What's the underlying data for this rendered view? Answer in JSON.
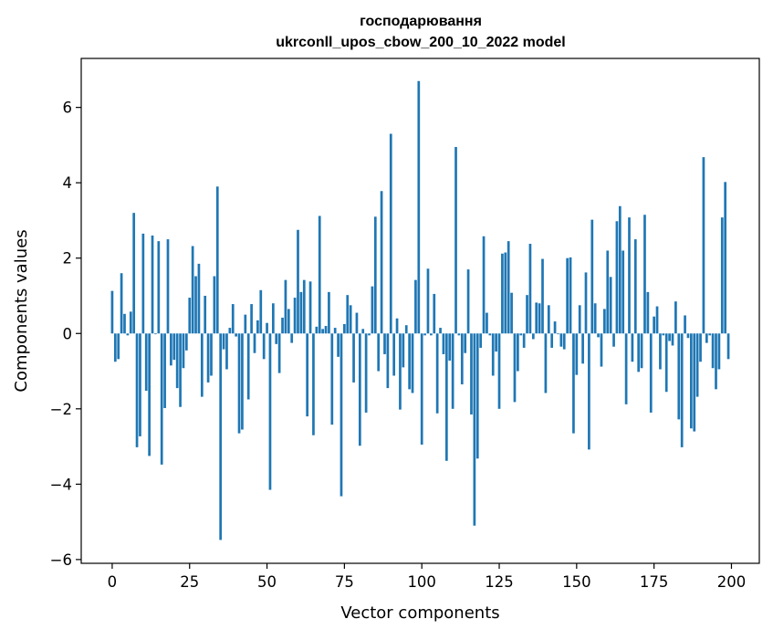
{
  "chart_data": {
    "type": "bar",
    "title": "господарювання\nukrconll_upos_cbow_200_10_2022 model",
    "title_lines": [
      "господарювання",
      "ukrconll_upos_cbow_200_10_2022 model"
    ],
    "xlabel": "Vector components",
    "ylabel": "Components values",
    "xlim": [
      -10,
      209
    ],
    "ylim": [
      -6.1,
      7.3
    ],
    "xticks": [
      0,
      25,
      50,
      75,
      100,
      125,
      150,
      175,
      200
    ],
    "xtick_labels": [
      "0",
      "25",
      "50",
      "75",
      "100",
      "125",
      "150",
      "175",
      "200"
    ],
    "yticks": [
      -6,
      -4,
      -2,
      0,
      2,
      4,
      6
    ],
    "ytick_labels": [
      "−6",
      "−4",
      "−2",
      "0",
      "2",
      "4",
      "6"
    ],
    "grid": false,
    "legend": "none",
    "bar_color": "#1f77b4",
    "x": [
      0,
      1,
      2,
      3,
      4,
      5,
      6,
      7,
      8,
      9,
      10,
      11,
      12,
      13,
      14,
      15,
      16,
      17,
      18,
      19,
      20,
      21,
      22,
      23,
      24,
      25,
      26,
      27,
      28,
      29,
      30,
      31,
      32,
      33,
      34,
      35,
      36,
      37,
      38,
      39,
      40,
      41,
      42,
      43,
      44,
      45,
      46,
      47,
      48,
      49,
      50,
      51,
      52,
      53,
      54,
      55,
      56,
      57,
      58,
      59,
      60,
      61,
      62,
      63,
      64,
      65,
      66,
      67,
      68,
      69,
      70,
      71,
      72,
      73,
      74,
      75,
      76,
      77,
      78,
      79,
      80,
      81,
      82,
      83,
      84,
      85,
      86,
      87,
      88,
      89,
      90,
      91,
      92,
      93,
      94,
      95,
      96,
      97,
      98,
      99,
      100,
      101,
      102,
      103,
      104,
      105,
      106,
      107,
      108,
      109,
      110,
      111,
      112,
      113,
      114,
      115,
      116,
      117,
      118,
      119,
      120,
      121,
      122,
      123,
      124,
      125,
      126,
      127,
      128,
      129,
      130,
      131,
      132,
      133,
      134,
      135,
      136,
      137,
      138,
      139,
      140,
      141,
      142,
      143,
      144,
      145,
      146,
      147,
      148,
      149,
      150,
      151,
      152,
      153,
      154,
      155,
      156,
      157,
      158,
      159,
      160,
      161,
      162,
      163,
      164,
      165,
      166,
      167,
      168,
      169,
      170,
      171,
      172,
      173,
      174,
      175,
      176,
      177,
      178,
      179,
      180,
      181,
      182,
      183,
      184,
      185,
      186,
      187,
      188,
      189,
      190,
      191,
      192,
      193,
      194,
      195,
      196,
      197,
      198,
      199
    ],
    "values": [
      1.13,
      -0.75,
      -0.68,
      1.6,
      0.52,
      -0.05,
      0.58,
      3.2,
      -3.02,
      -2.73,
      2.65,
      -1.52,
      -3.25,
      2.6,
      -0.02,
      2.45,
      -3.48,
      -1.98,
      2.5,
      -0.85,
      -0.7,
      -1.45,
      -1.95,
      -0.92,
      -0.45,
      0.95,
      2.32,
      1.52,
      1.85,
      -1.68,
      1.0,
      -1.3,
      -1.12,
      1.52,
      3.9,
      -5.48,
      -0.42,
      -0.95,
      0.15,
      0.78,
      -0.08,
      -2.65,
      -2.55,
      0.5,
      -1.75,
      0.78,
      -0.52,
      0.35,
      1.15,
      -0.68,
      0.28,
      -4.15,
      0.8,
      -0.28,
      -1.05,
      0.42,
      1.42,
      0.65,
      -0.25,
      0.95,
      2.75,
      1.1,
      1.42,
      -2.2,
      1.38,
      -2.7,
      0.18,
      3.12,
      0.12,
      0.2,
      1.1,
      -2.42,
      0.15,
      -0.62,
      -4.32,
      0.25,
      1.02,
      0.75,
      -1.3,
      0.55,
      -2.98,
      0.12,
      -2.1,
      -0.05,
      1.25,
      3.1,
      -1.0,
      3.78,
      -0.55,
      -1.45,
      5.3,
      -1.12,
      0.4,
      -2.02,
      -0.9,
      0.22,
      -1.48,
      -1.58,
      1.42,
      6.7,
      -2.95,
      -0.05,
      1.72,
      -0.05,
      1.05,
      -2.12,
      0.15,
      -0.55,
      -3.38,
      -0.72,
      -2.0,
      4.95,
      -0.05,
      -1.35,
      -0.52,
      1.7,
      -2.15,
      -5.1,
      -3.32,
      -0.38,
      2.58,
      0.55,
      -0.05,
      -1.12,
      -0.48,
      -2.0,
      2.12,
      2.15,
      2.45,
      1.08,
      -1.82,
      -1.0,
      -0.05,
      -0.38,
      1.02,
      2.38,
      -0.15,
      0.82,
      0.8,
      1.98,
      -1.58,
      0.75,
      -0.38,
      0.32,
      -0.02,
      -0.35,
      -0.42,
      2.0,
      2.02,
      -2.65,
      -1.1,
      0.75,
      -0.8,
      1.62,
      -3.08,
      3.02,
      0.8,
      -0.1,
      -0.88,
      0.65,
      2.2,
      1.5,
      -0.35,
      2.98,
      3.38,
      2.2,
      -1.88,
      3.08,
      -0.75,
      2.5,
      -1.02,
      -0.92,
      3.15,
      1.1,
      -2.1,
      0.45,
      0.72,
      -0.95,
      -0.05,
      -1.55,
      -0.2,
      -0.32,
      0.85,
      -2.28,
      -3.02,
      0.48,
      -0.12,
      -2.52,
      -2.6,
      -1.68,
      -0.75,
      4.68,
      -0.25,
      -0.05,
      -0.92,
      -1.48,
      -0.95,
      3.08,
      4.02,
      -0.68
    ]
  }
}
